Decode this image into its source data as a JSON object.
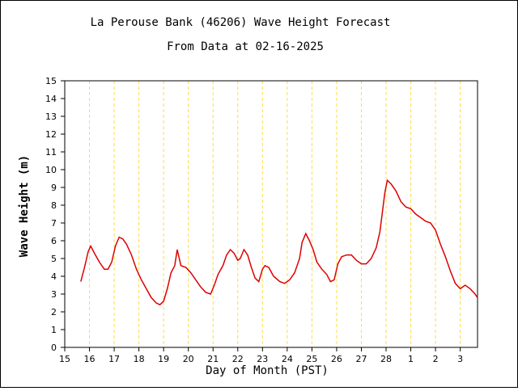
{
  "chart_data": {
    "type": "line",
    "title": "La Perouse Bank (46206) Wave Height Forecast",
    "subtitle": "From Data at 02-16-2025",
    "xlabel": "Day of Month (PST)",
    "ylabel": "Wave Height (m)",
    "x": [
      15.65,
      15.8,
      15.95,
      16.05,
      16.2,
      16.4,
      16.6,
      16.75,
      16.9,
      17.05,
      17.2,
      17.35,
      17.5,
      17.7,
      17.9,
      18.1,
      18.3,
      18.5,
      18.7,
      18.85,
      19.0,
      19.15,
      19.3,
      19.45,
      19.55,
      19.7,
      19.9,
      20.1,
      20.3,
      20.5,
      20.7,
      20.9,
      21.05,
      21.2,
      21.4,
      21.55,
      21.7,
      21.85,
      22.0,
      22.1,
      22.25,
      22.4,
      22.55,
      22.7,
      22.85,
      23.0,
      23.1,
      23.25,
      23.45,
      23.7,
      23.9,
      24.1,
      24.3,
      24.5,
      24.6,
      24.75,
      24.9,
      25.05,
      25.2,
      25.4,
      25.6,
      25.75,
      25.9,
      26.05,
      26.2,
      26.4,
      26.6,
      26.8,
      27.0,
      27.2,
      27.4,
      27.6,
      27.75,
      27.85,
      27.95,
      28.05,
      28.2,
      28.4,
      28.6,
      28.8,
      29.0,
      29.2,
      29.4,
      29.6,
      29.8,
      30.0,
      30.2,
      30.4,
      30.6,
      30.8,
      31.0,
      31.2,
      31.4,
      31.6,
      31.7
    ],
    "series": [
      {
        "name": "Wave Height",
        "color": "#dd0000",
        "values": [
          3.7,
          4.5,
          5.4,
          5.7,
          5.3,
          4.8,
          4.4,
          4.4,
          4.8,
          5.7,
          6.2,
          6.1,
          5.8,
          5.2,
          4.4,
          3.8,
          3.3,
          2.8,
          2.5,
          2.4,
          2.6,
          3.3,
          4.2,
          4.6,
          5.5,
          4.6,
          4.5,
          4.2,
          3.8,
          3.4,
          3.1,
          3.0,
          3.5,
          4.1,
          4.6,
          5.2,
          5.5,
          5.3,
          4.9,
          5.0,
          5.5,
          5.2,
          4.5,
          3.9,
          3.7,
          4.4,
          4.6,
          4.5,
          4.0,
          3.7,
          3.6,
          3.8,
          4.2,
          5.0,
          5.9,
          6.4,
          6.0,
          5.5,
          4.8,
          4.4,
          4.1,
          3.7,
          3.8,
          4.7,
          5.1,
          5.2,
          5.2,
          4.9,
          4.7,
          4.7,
          5.0,
          5.6,
          6.5,
          7.6,
          8.7,
          9.4,
          9.2,
          8.8,
          8.2,
          7.9,
          7.8,
          7.5,
          7.3,
          7.1,
          7.0,
          6.6,
          5.8,
          5.1,
          4.3,
          3.6,
          3.3,
          3.5,
          3.3,
          3.0,
          2.8
        ]
      }
    ],
    "xlim": [
      15,
      31.7
    ],
    "xticks": [
      15,
      16,
      17,
      18,
      19,
      20,
      21,
      22,
      23,
      24,
      25,
      26,
      27,
      28,
      {
        "value": 29,
        "label": "1"
      },
      {
        "value": 30,
        "label": "2"
      },
      {
        "value": 31,
        "label": "3"
      }
    ],
    "ylim": [
      0,
      15
    ],
    "yticks": [
      0,
      1,
      2,
      3,
      4,
      5,
      6,
      7,
      8,
      9,
      10,
      11,
      12,
      13,
      14,
      15
    ],
    "grid": true,
    "grid_color": "#ffdd44"
  }
}
